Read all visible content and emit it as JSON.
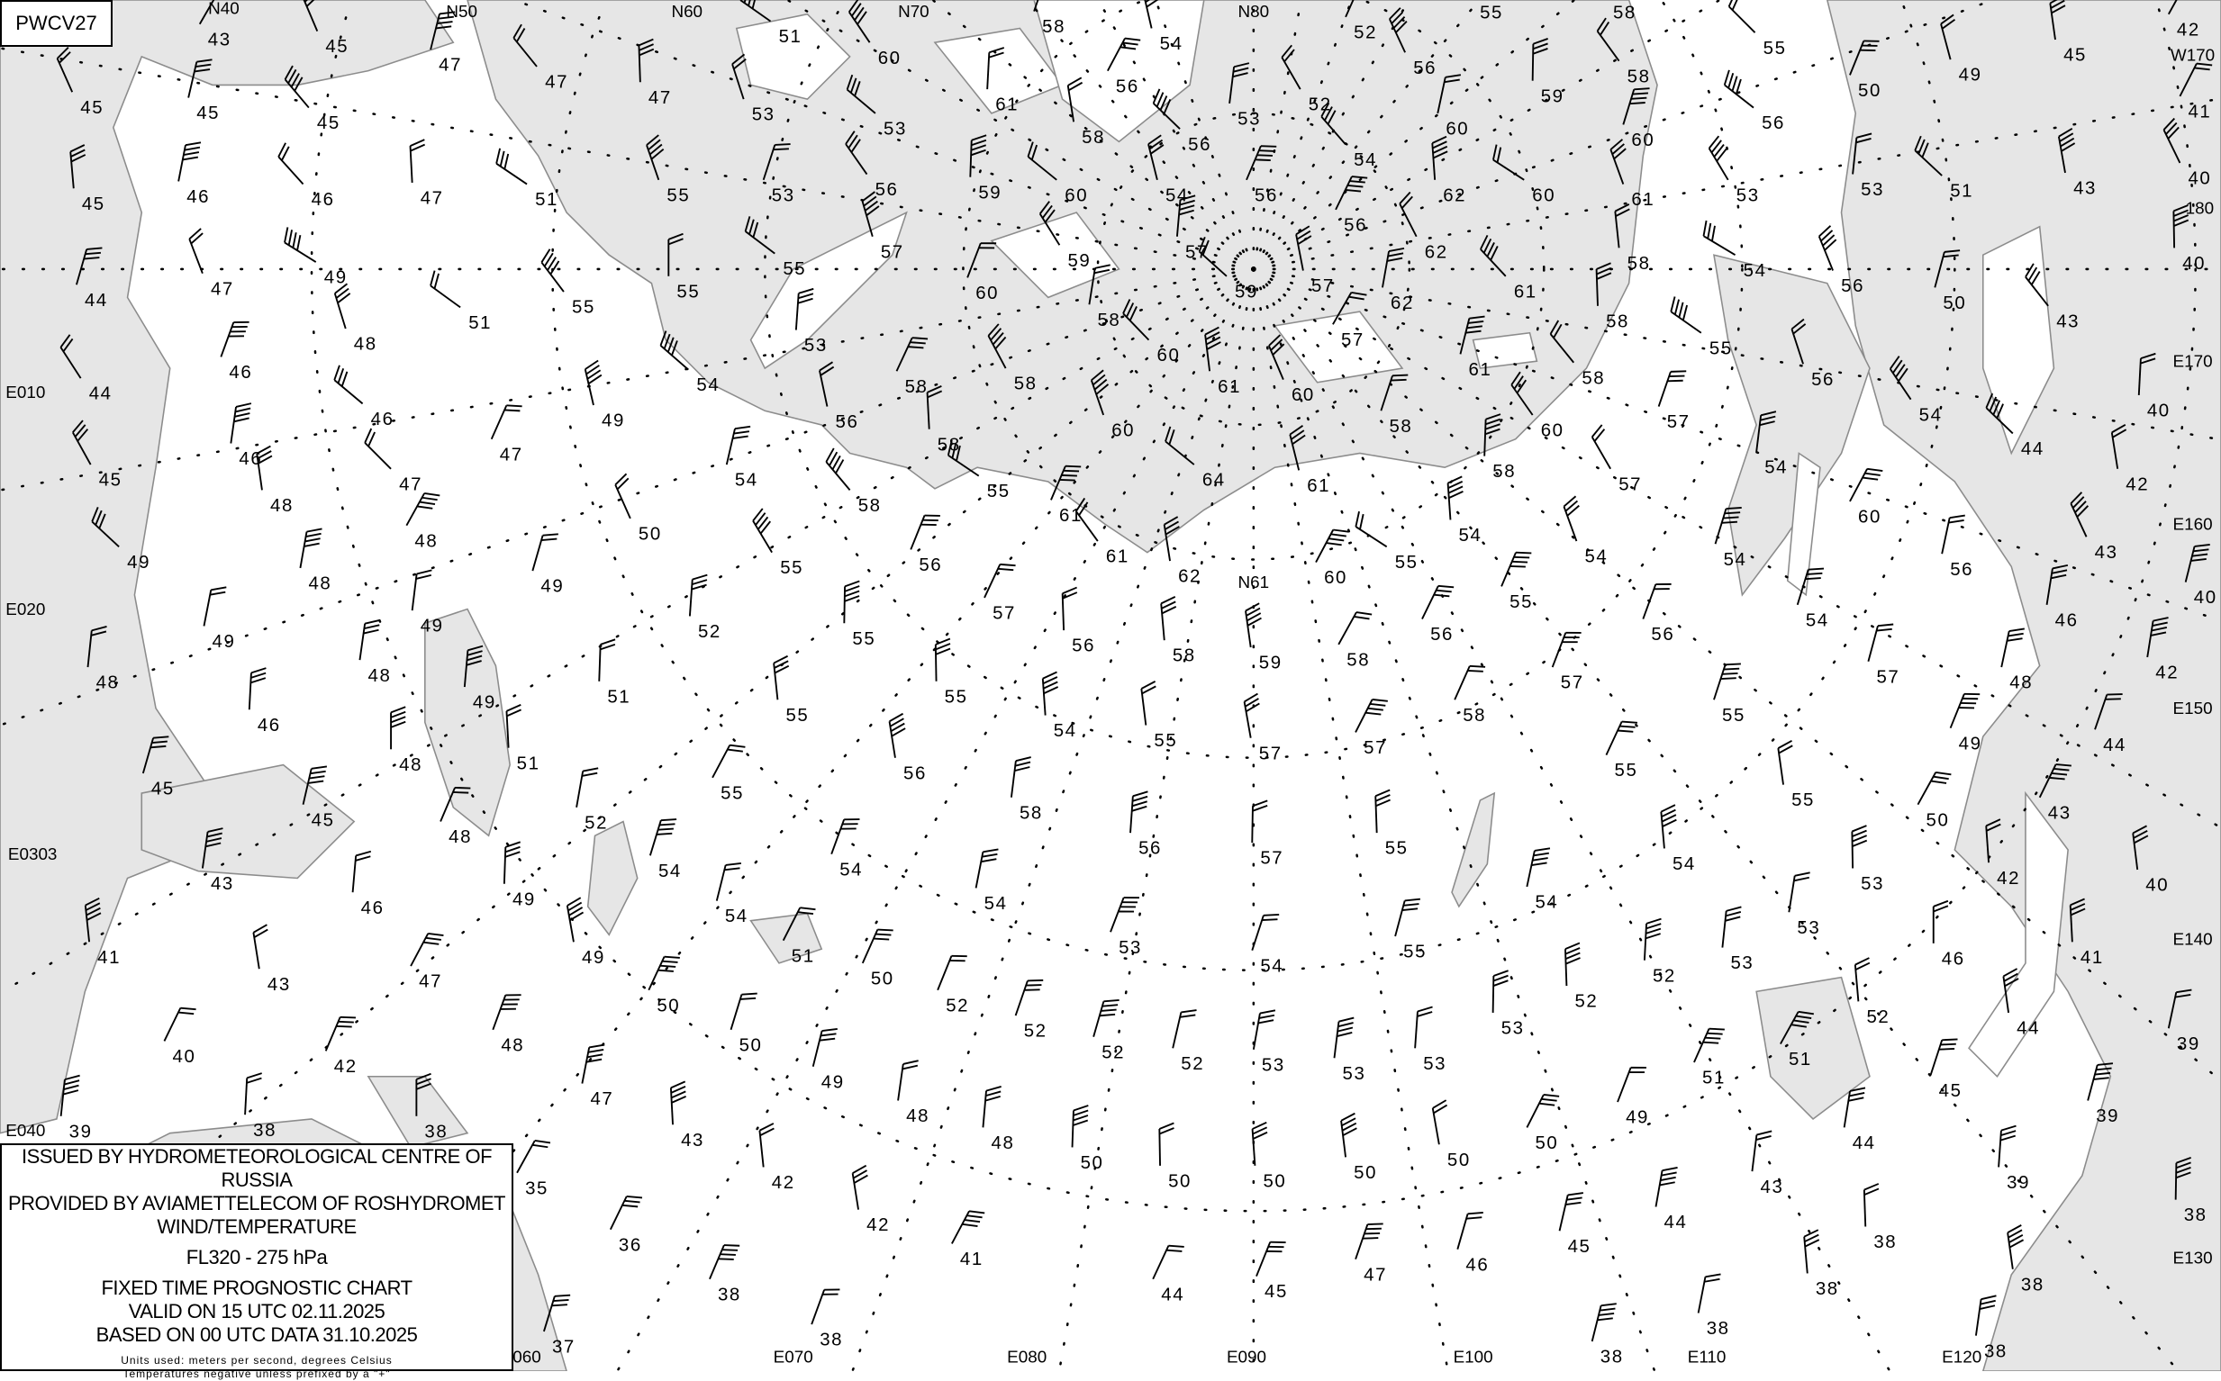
{
  "chart_id": "PWCV27",
  "legend": {
    "line1": "ISSUED BY HYDROMETEOROLOGICAL CENTRE OF RUSSIA",
    "line2": "PROVIDED BY AVIAMETTELECOM OF ROSHYDROMET",
    "line3": "WIND/TEMPERATURE",
    "level": "FL320 - 275 hPa",
    "chart_type": "FIXED TIME PROGNOSTIC CHART",
    "valid": "VALID ON 15 UTC 02.11.2025",
    "based": "BASED ON 00 UTC DATA 31.10.2025",
    "units": "Units used: meters per second, degrees Celsius",
    "note": "Temperatures negative unless prefixed by a \"+\""
  },
  "colors": {
    "sea": "#e6e6e6",
    "land": "#ffffff",
    "coast": "#8c8c8c",
    "ink": "#000000"
  },
  "grid_labels": [
    "N40",
    "N50",
    "N60",
    "N70",
    "N80",
    "W170",
    "180",
    "E170",
    "E160",
    "E150",
    "E140",
    "E130",
    "E120",
    "E110",
    "E100",
    "E090",
    "E080",
    "E070",
    "060",
    "E040",
    "E0303",
    "E020",
    "E010",
    "N61"
  ],
  "temperatures": [
    "43",
    "45",
    "47",
    "47",
    "47",
    "51",
    "53",
    "58",
    "60",
    "61",
    "53",
    "54",
    "52",
    "55",
    "58",
    "55",
    "45",
    "42",
    "45",
    "45",
    "45",
    "47",
    "51",
    "55",
    "53",
    "56",
    "59",
    "60",
    "54",
    "56",
    "52",
    "53",
    "56",
    "58",
    "56",
    "56",
    "60",
    "54",
    "62",
    "60",
    "61",
    "60",
    "58",
    "59",
    "56",
    "49",
    "50",
    "53",
    "53",
    "51",
    "43",
    "41",
    "40",
    "46",
    "46",
    "45",
    "49",
    "47",
    "44",
    "55",
    "55",
    "55",
    "57",
    "60",
    "59",
    "57",
    "59",
    "57",
    "56",
    "62",
    "62",
    "61",
    "58",
    "54",
    "56",
    "50",
    "43",
    "40",
    "51",
    "48",
    "46",
    "44",
    "53",
    "54",
    "56",
    "58",
    "58",
    "58",
    "60",
    "61",
    "57",
    "60",
    "61",
    "58",
    "58",
    "55",
    "56",
    "57",
    "54",
    "40",
    "46",
    "49",
    "47",
    "45",
    "46",
    "47",
    "48",
    "48",
    "50",
    "54",
    "58",
    "58",
    "55",
    "60",
    "58",
    "60",
    "58",
    "64",
    "61",
    "61",
    "57",
    "54",
    "44",
    "42",
    "60",
    "43",
    "56",
    "46",
    "54",
    "55",
    "54",
    "54",
    "61",
    "62",
    "60",
    "57",
    "56",
    "55",
    "49",
    "49",
    "48",
    "49",
    "52",
    "55",
    "56",
    "58",
    "59",
    "58",
    "56",
    "55",
    "56",
    "54",
    "40",
    "49",
    "48",
    "49",
    "51",
    "55",
    "54",
    "55",
    "57",
    "57",
    "58",
    "57",
    "55",
    "57",
    "48",
    "42",
    "48",
    "46",
    "48",
    "51",
    "55",
    "56",
    "55",
    "55",
    "49",
    "44",
    "45",
    "45",
    "52",
    "58",
    "56",
    "57",
    "55",
    "54",
    "55",
    "50",
    "43",
    "48",
    "54",
    "54",
    "54",
    "54",
    "43",
    "46",
    "49",
    "53",
    "42",
    "40",
    "49",
    "51",
    "50",
    "53",
    "54",
    "55",
    "54",
    "53",
    "53",
    "52",
    "46",
    "41",
    "41",
    "43",
    "47",
    "50",
    "52",
    "52",
    "52",
    "52",
    "53",
    "53",
    "53",
    "53",
    "52",
    "52",
    "44",
    "51",
    "40",
    "42",
    "48",
    "50",
    "49",
    "47",
    "48",
    "48",
    "50",
    "50",
    "50",
    "50",
    "50",
    "50",
    "51",
    "49",
    "45",
    "39",
    "39",
    "44",
    "39",
    "38",
    "38",
    "43",
    "42",
    "42",
    "41",
    "44",
    "45",
    "47",
    "46",
    "45",
    "44",
    "43",
    "39",
    "38",
    "38",
    "38",
    "38",
    "35",
    "36",
    "38",
    "38",
    "37",
    "38",
    "38",
    "38"
  ]
}
